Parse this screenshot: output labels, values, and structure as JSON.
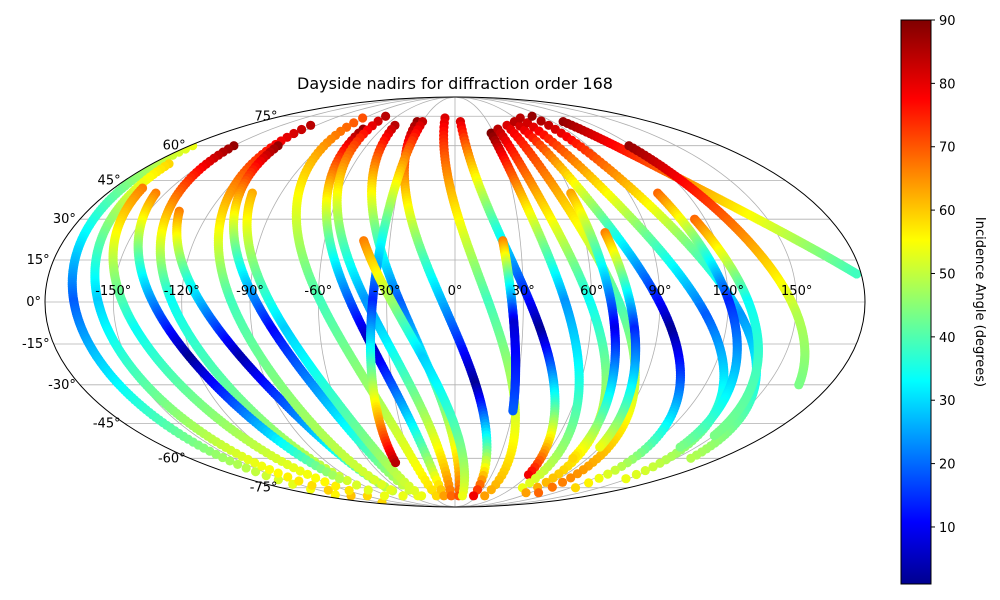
{
  "chart_data": {
    "type": "scatter",
    "projection": "mollweide",
    "title": "Dayside nadirs for diffraction order 168",
    "xlabel": "",
    "ylabel": "",
    "lon_ticks": [
      "-150°",
      "-120°",
      "-90°",
      "-60°",
      "-30°",
      "0°",
      "30°",
      "60°",
      "90°",
      "120°",
      "150°"
    ],
    "lat_ticks": [
      "75°",
      "60°",
      "45°",
      "30°",
      "15°",
      "0°",
      "-15°",
      "-30°",
      "-45°",
      "-60°",
      "-75°"
    ],
    "lon_tick_values": [
      -150,
      -120,
      -90,
      -60,
      -30,
      0,
      30,
      60,
      90,
      120,
      150
    ],
    "lat_tick_values": [
      75,
      60,
      45,
      30,
      15,
      0,
      -15,
      -30,
      -45,
      -60,
      -75
    ],
    "grid": true,
    "colorbar": {
      "label": "Incidence Angle (degrees)",
      "colormap": "jet",
      "range": [
        1,
        90
      ],
      "ticks": [
        10,
        20,
        30,
        40,
        50,
        60,
        70,
        80,
        90
      ]
    },
    "tracks": [
      {
        "lon0": -178,
        "lat0": 60,
        "lon1": -155,
        "lat1": -85,
        "i_start": 55,
        "i_min": 20,
        "lat_min": 0,
        "i_end": 60
      },
      {
        "lon0": -170,
        "lat0": 52,
        "lon1": -140,
        "lat1": -80,
        "i_start": 60,
        "i_min": 30,
        "lat_min": 0,
        "i_end": 62
      },
      {
        "lon0": -165,
        "lat0": 42,
        "lon1": -118,
        "lat1": -80,
        "i_start": 68,
        "i_min": 35,
        "lat_min": -10,
        "i_end": 60
      },
      {
        "lon0": -150,
        "lat0": 60,
        "lon1": -95,
        "lat1": -80,
        "i_start": 88,
        "i_min": 35,
        "lat_min": 0,
        "i_end": 55
      },
      {
        "lon0": -155,
        "lat0": 40,
        "lon1": -100,
        "lat1": -70,
        "i_start": 68,
        "i_min": 3,
        "lat_min": -20,
        "i_end": 50
      },
      {
        "lon0": -135,
        "lat0": 33,
        "lon1": -70,
        "lat1": -80,
        "i_start": 68,
        "i_min": 5,
        "lat_min": -20,
        "i_end": 55
      },
      {
        "lon0": -125,
        "lat0": 70,
        "lon1": -70,
        "lat1": -80,
        "i_start": 85,
        "i_min": 40,
        "lat_min": 0,
        "i_end": 55
      },
      {
        "lon0": -120,
        "lat0": 60,
        "lon1": -50,
        "lat1": -80,
        "i_start": 88,
        "i_min": 12,
        "lat_min": -10,
        "i_end": 55
      },
      {
        "lon0": -105,
        "lat0": 40,
        "lon1": -45,
        "lat1": -80,
        "i_start": 64,
        "i_min": 30,
        "lat_min": -10,
        "i_end": 55
      },
      {
        "lon0": -92,
        "lat0": 74,
        "lon1": -25,
        "lat1": -80,
        "i_start": 72,
        "i_min": 40,
        "lat_min": 0,
        "i_end": 60
      },
      {
        "lon0": -75,
        "lat0": 68,
        "lon1": -15,
        "lat1": -80,
        "i_start": 88,
        "i_min": 5,
        "lat_min": -15,
        "i_end": 65
      },
      {
        "lon0": -72,
        "lat0": 75,
        "lon1": -5,
        "lat1": -80,
        "i_start": 85,
        "i_min": 25,
        "lat_min": 0,
        "i_end": 70
      },
      {
        "lon0": -52,
        "lat0": 70,
        "lon1": 5,
        "lat1": -80,
        "i_start": 85,
        "i_min": 20,
        "lat_min": 0,
        "i_end": 72
      },
      {
        "lon0": -35,
        "lat0": 72,
        "lon1": 25,
        "lat1": -80,
        "i_start": 88,
        "i_min": 3,
        "lat_min": -30,
        "i_end": 80
      },
      {
        "lon0": -30,
        "lat0": 72,
        "lon1": -42,
        "lat1": -62,
        "i_start": 84,
        "i_min": 15,
        "lat_min": 0,
        "i_end": 85
      },
      {
        "lon0": -42,
        "lat0": 22,
        "lon1": 10,
        "lat1": -80,
        "i_start": 68,
        "i_min": 30,
        "lat_min": -20,
        "i_end": 55
      },
      {
        "lon0": -10,
        "lat0": 74,
        "lon1": 40,
        "lat1": -80,
        "i_start": 82,
        "i_min": 40,
        "lat_min": 0,
        "i_end": 65
      },
      {
        "lon0": 5,
        "lat0": 72,
        "lon1": 60,
        "lat1": -68,
        "i_start": 82,
        "i_min": 3,
        "lat_min": -10,
        "i_end": 80
      },
      {
        "lon0": 28,
        "lat0": 66,
        "lon1": 70,
        "lat1": -75,
        "i_start": 90,
        "i_min": 25,
        "lat_min": 0,
        "i_end": 55
      },
      {
        "lon0": 22,
        "lat0": 22,
        "lon1": 30,
        "lat1": -40,
        "i_start": 68,
        "i_min": 8,
        "lat_min": -8,
        "i_end": 20
      },
      {
        "lon0": 35,
        "lat0": 68,
        "lon1": 85,
        "lat1": -78,
        "i_start": 85,
        "i_min": 35,
        "lat_min": 0,
        "i_end": 65
      },
      {
        "lon0": 45,
        "lat0": 70,
        "lon1": 100,
        "lat1": -78,
        "i_start": 82,
        "i_min": 40,
        "lat_min": 0,
        "i_end": 70
      },
      {
        "lon0": 55,
        "lat0": 72,
        "lon1": 125,
        "lat1": -75,
        "i_start": 85,
        "i_min": 3,
        "lat_min": -10,
        "i_end": 60
      },
      {
        "lon0": 65,
        "lat0": 74,
        "lon1": 148,
        "lat1": -70,
        "i_start": 85,
        "i_min": 20,
        "lat_min": -5,
        "i_end": 55
      },
      {
        "lon0": 80,
        "lat0": 75,
        "lon1": 160,
        "lat1": -60,
        "i_start": 88,
        "i_min": 25,
        "lat_min": -5,
        "i_end": 50
      },
      {
        "lon0": 100,
        "lat0": 72,
        "lon1": 178,
        "lat1": 10,
        "i_start": 88,
        "i_min": 40,
        "lat_min": 10,
        "i_end": 35
      },
      {
        "lon0": 60,
        "lat0": 40,
        "lon1": 80,
        "lat1": -60,
        "i_start": 65,
        "i_min": 10,
        "lat_min": -10,
        "i_end": 60
      },
      {
        "lon0": 70,
        "lat0": 25,
        "lon1": 90,
        "lat1": -55,
        "i_start": 68,
        "i_min": 15,
        "lat_min": -10,
        "i_end": 55
      },
      {
        "lon0": 105,
        "lat0": 40,
        "lon1": 140,
        "lat1": -55,
        "i_start": 70,
        "i_min": 15,
        "lat_min": 0,
        "i_end": 45
      },
      {
        "lon0": 115,
        "lat0": 30,
        "lon1": 150,
        "lat1": -50,
        "i_start": 70,
        "i_min": 35,
        "lat_min": 0,
        "i_end": 45
      },
      {
        "lon0": 118,
        "lat0": 60,
        "lon1": 165,
        "lat1": -30,
        "i_start": 88,
        "i_min": 50,
        "lat_min": -5,
        "i_end": 45
      }
    ]
  }
}
